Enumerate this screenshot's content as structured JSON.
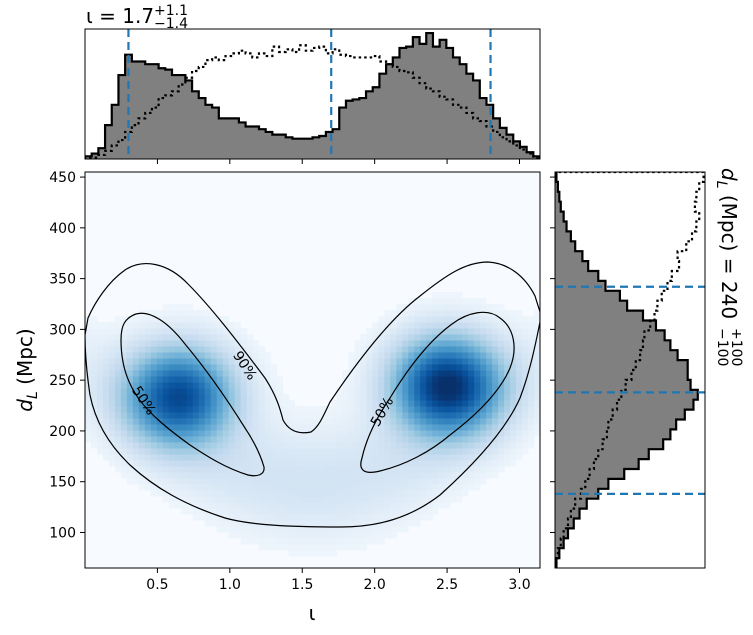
{
  "chart_data": [
    {
      "type": "heatmap",
      "panel": "joint",
      "xlabel": "ι",
      "ylabel_symbol": "d",
      "ylabel_sub": "L",
      "ylabel_unit": "(Mpc)",
      "xlim": [
        0.0,
        3.14159
      ],
      "ylim": [
        65,
        455
      ],
      "x_ticks": [
        0.5,
        1.0,
        1.5,
        2.0,
        2.5,
        3.0
      ],
      "x_tick_labels": [
        "0.5",
        "1.0",
        "1.5",
        "2.0",
        "2.5",
        "3.0"
      ],
      "y_ticks": [
        100,
        150,
        200,
        250,
        300,
        350,
        400,
        450
      ],
      "y_tick_labels": [
        "100",
        "150",
        "200",
        "250",
        "300",
        "350",
        "400",
        "450"
      ],
      "colormap": "Blues",
      "density_modes": [
        {
          "x": 0.65,
          "y": 235,
          "sx": 0.25,
          "sy": 32,
          "weight": 0.85
        },
        {
          "x": 2.5,
          "y": 245,
          "sx": 0.25,
          "sy": 32,
          "weight": 1.0
        }
      ],
      "contours": [
        {
          "level": "50%",
          "label_x": 0.42,
          "label_y": 225
        },
        {
          "level": "90%",
          "label_x": 0.93,
          "label_y": 262
        },
        {
          "level": "50%",
          "label_x": 2.08,
          "label_y": 215
        }
      ]
    },
    {
      "type": "histogram",
      "panel": "top-marginal",
      "parameter": "ι",
      "title_value": "1.7",
      "title_plus": "+1.1",
      "title_minus": "−1.4",
      "x_range": [
        0.0,
        3.14159
      ],
      "median": 1.7,
      "lower": 0.3,
      "upper": 2.8,
      "posterior_bins": [
        0.2,
        0.4,
        0.8,
        2.5,
        4.0,
        6.2,
        7.7,
        7.2,
        7.2,
        7.0,
        7.0,
        6.7,
        6.6,
        6.2,
        6.2,
        5.8,
        5.0,
        4.5,
        4.0,
        3.8,
        3.0,
        3.0,
        3.0,
        2.7,
        2.4,
        2.4,
        2.2,
        2.0,
        1.8,
        1.8,
        1.6,
        1.5,
        1.5,
        1.5,
        1.6,
        1.7,
        2.0,
        2.2,
        3.8,
        4.3,
        4.4,
        4.5,
        5.0,
        5.3,
        6.3,
        7.0,
        7.5,
        8.2,
        8.3,
        9.0,
        8.5,
        9.3,
        8.3,
        8.8,
        8.2,
        7.5,
        7.0,
        6.3,
        5.8,
        4.5,
        4.0,
        3.0,
        2.3,
        1.8,
        1.3,
        0.9,
        0.5,
        0.2
      ],
      "prior_bins": [
        0.1,
        0.1,
        0.3,
        0.6,
        1.0,
        1.4,
        2.0,
        2.5,
        3.0,
        3.4,
        3.8,
        4.5,
        4.7,
        5.0,
        5.5,
        6.0,
        6.5,
        6.8,
        7.3,
        7.5,
        7.3,
        7.6,
        7.8,
        8.0,
        7.8,
        7.5,
        7.8,
        7.6,
        8.3,
        7.9,
        8.1,
        7.9,
        8.4,
        8.0,
        8.2,
        8.3,
        7.8,
        8.1,
        7.7,
        7.6,
        7.5,
        7.5,
        7.5,
        7.6,
        7.2,
        7.0,
        6.8,
        6.5,
        6.4,
        6.0,
        5.6,
        5.2,
        5.0,
        4.6,
        4.4,
        4.0,
        3.8,
        3.4,
        3.0,
        2.8,
        2.4,
        2.0,
        1.6,
        1.3,
        1.0,
        0.7,
        0.4,
        0.1
      ],
      "ylim_max": 9.6
    },
    {
      "type": "histogram",
      "panel": "right-marginal",
      "parameter_symbol": "d",
      "parameter_sub": "L",
      "parameter_unit": "(Mpc)",
      "title_value": "240",
      "title_plus": "+100",
      "title_minus": "−100",
      "y_range": [
        65,
        455
      ],
      "median": 238,
      "lower": 138,
      "upper": 342,
      "posterior_bins": [
        0.1,
        0.3,
        0.6,
        0.9,
        1.3,
        1.7,
        2.2,
        3.0,
        3.7,
        4.8,
        5.8,
        6.5,
        7.5,
        8.0,
        8.4,
        9.0,
        9.6,
        9.9,
        9.4,
        9.2,
        9.2,
        8.5,
        8.0,
        7.6,
        7.0,
        6.1,
        5.0,
        4.5,
        3.5,
        3.0,
        2.3,
        1.9,
        1.4,
        1.1,
        0.8,
        0.6,
        0.4,
        0.3,
        0.2,
        0.1
      ],
      "prior_bins": [
        0.1,
        0.2,
        0.4,
        0.6,
        0.9,
        1.1,
        1.4,
        1.8,
        2.1,
        2.4,
        2.7,
        3.0,
        3.3,
        3.6,
        3.7,
        4.0,
        4.3,
        4.6,
        4.9,
        5.3,
        5.6,
        5.9,
        6.1,
        6.2,
        6.6,
        6.9,
        7.1,
        7.4,
        7.8,
        8.1,
        8.6,
        8.5,
        9.1,
        9.5,
        9.8,
        10.0,
        9.7,
        9.8,
        10.0,
        10.3
      ],
      "xlim_max": 10.4
    }
  ]
}
